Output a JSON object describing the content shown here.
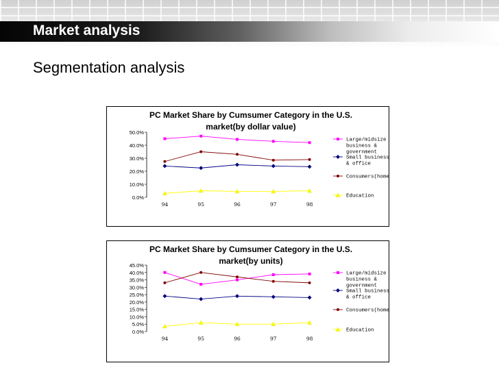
{
  "slide": {
    "title": "Market analysis",
    "subtitle": "Segmentation analysis"
  },
  "colors": {
    "large": "#ff00ff",
    "small": "#000080",
    "consumers": "#800000",
    "education": "#ffff00"
  },
  "chart_data": [
    {
      "type": "line",
      "title_lines": [
        "PC Market Share by Cumsumer Category in the U.S.",
        "market(by dollar value)"
      ],
      "x": [
        "94",
        "95",
        "96",
        "97",
        "98"
      ],
      "y_ticks": [
        "50.0%",
        "40.0%",
        "30.0%",
        "20.0%",
        "10.0%",
        "0.0%"
      ],
      "ylim": [
        0,
        50
      ],
      "grid": false,
      "legend_position": "right",
      "series": [
        {
          "name_lines": [
            "Large/midsize",
            "business &",
            "government"
          ],
          "marker": "square",
          "color_key": "large",
          "values": [
            45,
            47,
            44.5,
            43,
            42
          ]
        },
        {
          "name_lines": [
            "Small business",
            "& office"
          ],
          "marker": "diamond",
          "color_key": "small",
          "values": [
            24,
            22.5,
            25,
            24,
            23.5
          ]
        },
        {
          "name_lines": [
            "Consumers(home)"
          ],
          "marker": "circle",
          "color_key": "consumers",
          "values": [
            27.5,
            35,
            33,
            28.5,
            29
          ]
        },
        {
          "name_lines": [
            "Education"
          ],
          "marker": "triangle",
          "color_key": "education",
          "values": [
            3,
            5,
            4.5,
            4.5,
            5
          ]
        }
      ]
    },
    {
      "type": "line",
      "title_lines": [
        "PC Market Share by Cumsumer Category in the U.S.",
        "market(by units)"
      ],
      "x": [
        "94",
        "95",
        "96",
        "97",
        "98"
      ],
      "y_ticks": [
        "45.0%",
        "40.0%",
        "35.0%",
        "30.0%",
        "25.0%",
        "20.0%",
        "15.0%",
        "10.0%",
        "5.0%",
        "0.0%"
      ],
      "ylim": [
        0,
        45
      ],
      "grid": false,
      "legend_position": "right",
      "series": [
        {
          "name_lines": [
            "Large/midsize",
            "business &",
            "government"
          ],
          "marker": "square",
          "color_key": "large",
          "values": [
            40,
            32,
            35,
            38.5,
            39
          ]
        },
        {
          "name_lines": [
            "Small business",
            "& office"
          ],
          "marker": "diamond",
          "color_key": "small",
          "values": [
            24,
            22,
            24,
            23.5,
            23
          ]
        },
        {
          "name_lines": [
            "Consumers(home)"
          ],
          "marker": "circle",
          "color_key": "consumers",
          "values": [
            33,
            40,
            37,
            34,
            33
          ]
        },
        {
          "name_lines": [
            "Education"
          ],
          "marker": "triangle",
          "color_key": "education",
          "values": [
            3.5,
            6,
            5,
            5,
            6
          ]
        }
      ]
    }
  ]
}
